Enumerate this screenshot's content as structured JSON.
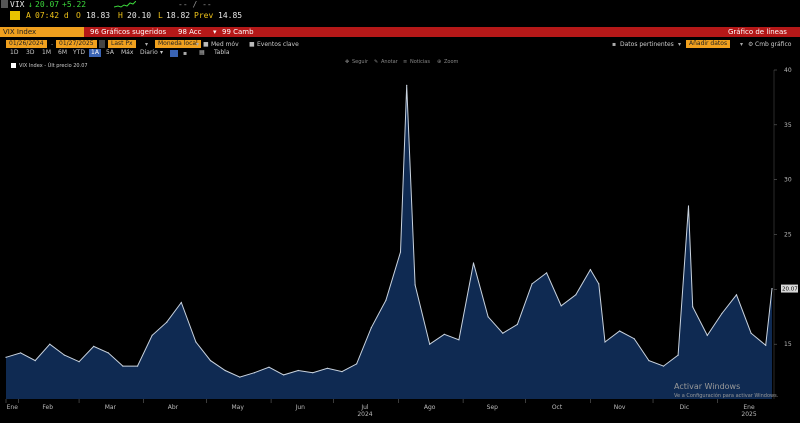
{
  "header": {
    "ticker": "VIX",
    "last": "20.07",
    "change": "+5.22",
    "time_marker": "A",
    "time": "07:42 d",
    "open_label": "O",
    "open": "18.83",
    "high_label": "H",
    "high": "20.10",
    "low_label": "L",
    "low": "18.82",
    "prev_label": "Prev",
    "prev": "14.85",
    "dashes": "-- / --"
  },
  "menubar": {
    "security": "VIX Index",
    "menu1": "96 Gráficos sugeridos",
    "menu2": "98 Acc",
    "menu3": "99 Camb",
    "title": "Gráfico de líneas"
  },
  "controls": {
    "date_start": "01/26/2024",
    "date_end": "01/27/2025",
    "field1": "Last Px",
    "field2": "Moneda local",
    "med_mov": "Med móv",
    "eventos": "Eventos clave",
    "datos": "Datos pertinentes",
    "amber_right": "Añadir datos",
    "cmb": "Cmb gráfico"
  },
  "periods": [
    "1D",
    "3D",
    "1M",
    "6M",
    "YTD",
    "1A",
    "5A",
    "Máx"
  ],
  "selected_period": "1A",
  "frequency": "Diario",
  "table_label": "Tabla",
  "toolbar": [
    "Seguir",
    "Anotar",
    "Noticias",
    "Zoom"
  ],
  "legend": {
    "label": "VIX Index - Últ precio 20.07"
  },
  "watermark": {
    "line1": "Activar Windows",
    "line2": "Ve a Configuración para activar Windows."
  },
  "chart_data": {
    "type": "area",
    "series": [
      {
        "name": "VIX Index",
        "x": [
          "2024-01-26",
          "2024-02-02",
          "2024-02-09",
          "2024-02-16",
          "2024-02-23",
          "2024-03-01",
          "2024-03-08",
          "2024-03-15",
          "2024-03-22",
          "2024-03-29",
          "2024-04-05",
          "2024-04-12",
          "2024-04-19",
          "2024-04-26",
          "2024-05-03",
          "2024-05-10",
          "2024-05-17",
          "2024-05-24",
          "2024-05-31",
          "2024-06-07",
          "2024-06-14",
          "2024-06-21",
          "2024-06-28",
          "2024-07-05",
          "2024-07-12",
          "2024-07-19",
          "2024-07-26",
          "2024-08-02",
          "2024-08-05",
          "2024-08-09",
          "2024-08-16",
          "2024-08-23",
          "2024-08-30",
          "2024-09-06",
          "2024-09-13",
          "2024-09-20",
          "2024-09-27",
          "2024-10-04",
          "2024-10-11",
          "2024-10-18",
          "2024-10-25",
          "2024-11-01",
          "2024-11-05",
          "2024-11-08",
          "2024-11-15",
          "2024-11-22",
          "2024-11-29",
          "2024-12-06",
          "2024-12-13",
          "2024-12-18",
          "2024-12-20",
          "2024-12-27",
          "2025-01-03",
          "2025-01-10",
          "2025-01-17",
          "2025-01-24",
          "2025-01-27"
        ],
        "y": [
          13.8,
          14.2,
          13.5,
          15.0,
          14.0,
          13.4,
          14.8,
          14.2,
          13.0,
          13.0,
          15.8,
          17.0,
          18.8,
          15.2,
          13.5,
          12.6,
          12.0,
          12.4,
          12.9,
          12.2,
          12.6,
          12.4,
          12.8,
          12.5,
          13.2,
          16.5,
          19.0,
          23.4,
          38.6,
          20.4,
          15.0,
          15.9,
          15.4,
          22.4,
          17.5,
          16.0,
          16.8,
          20.5,
          21.5,
          18.5,
          19.5,
          21.8,
          20.5,
          15.2,
          16.2,
          15.5,
          13.5,
          13.0,
          14.0,
          27.6,
          18.4,
          15.8,
          17.8,
          19.5,
          16.0,
          14.9,
          20.07
        ]
      }
    ],
    "x_tick_labels": [
      "Ene",
      "Feb",
      "Mar",
      "Abr",
      "May",
      "Jun",
      "Jul",
      "Ago",
      "Sep",
      "Oct",
      "Nov",
      "Dic",
      "Ene"
    ],
    "x_year_labels": [
      "2024",
      "2025"
    ],
    "y_tick_labels": [
      "15",
      "20",
      "25",
      "30",
      "35",
      "40"
    ],
    "ylim": [
      10,
      40
    ],
    "last_value_label": "20.07",
    "grid": false,
    "legend_position": "top-left",
    "colors": {
      "line": "#c9d3df",
      "fill": "#0f2a52",
      "background": "#000000"
    }
  }
}
